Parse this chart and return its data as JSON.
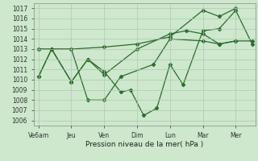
{
  "background_color": "#cde8cd",
  "grid_color": "#b0c8b0",
  "line_color": "#2d6a2d",
  "marker_color": "#2d6a2d",
  "xtick_labels": [
    "Ve6am",
    "Jeu",
    "Ven",
    "Dim",
    "Lun",
    "Mar",
    "Mer"
  ],
  "xlabel": "Pression niveau de la mer( hPa )",
  "ylim": [
    1005.5,
    1017.5
  ],
  "yticks": [
    1006,
    1007,
    1008,
    1009,
    1010,
    1011,
    1012,
    1013,
    1014,
    1015,
    1016,
    1017
  ],
  "xtick_pos": [
    0,
    1,
    2,
    3,
    4,
    5,
    6
  ],
  "xlim": [
    -0.15,
    6.6
  ],
  "lineA_x": [
    0,
    1,
    2,
    3,
    4,
    5,
    5.5,
    6
  ],
  "lineA_y": [
    1013.0,
    1013.0,
    1013.2,
    1013.5,
    1014.2,
    1016.8,
    1016.2,
    1017.0
  ],
  "lineB_x": [
    0,
    0.4,
    1.0,
    1.5,
    2.0,
    3.0,
    4.0,
    4.5,
    5.0,
    5.5,
    6.0
  ],
  "lineB_y": [
    1013.0,
    1013.0,
    1009.8,
    1012.0,
    1010.5,
    1013.0,
    1014.5,
    1014.8,
    1014.5,
    1013.5,
    1013.8
  ],
  "lineC_x": [
    0,
    0.4,
    1.0,
    1.5,
    2.0,
    2.5,
    2.8,
    3.2,
    3.6,
    4.0,
    4.4,
    5.0,
    5.5,
    6.0,
    6.5
  ],
  "lineC_y": [
    1010.3,
    1013.0,
    1009.8,
    1012.0,
    1010.8,
    1008.8,
    1009.0,
    1006.5,
    1007.2,
    1011.5,
    1009.5,
    1014.8,
    1015.0,
    1016.8,
    1013.5
  ],
  "lineD_x": [
    0,
    0.4,
    1.0,
    1.5,
    2.0,
    2.5,
    3.5,
    4.0,
    5.0,
    5.5,
    6.0,
    6.5
  ],
  "lineD_y": [
    1010.3,
    1013.0,
    1013.0,
    1008.0,
    1008.0,
    1010.3,
    1011.5,
    1014.0,
    1013.8,
    1013.5,
    1013.8,
    1013.8
  ]
}
